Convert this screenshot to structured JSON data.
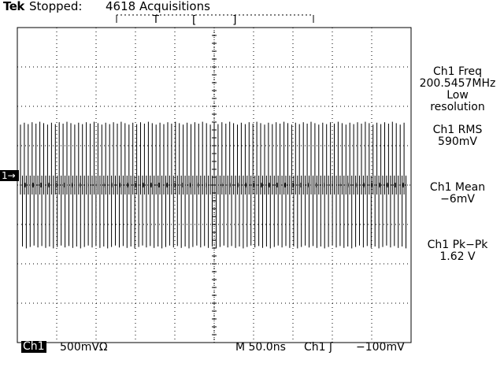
{
  "status": {
    "brand": "Tek",
    "state": "Stopped:",
    "acquisitions": "4618 Acquisitions"
  },
  "record_bar": {
    "trigger_marker": "T",
    "window_open": "[",
    "window_close": "]"
  },
  "channel_marker": "1→",
  "measurements": [
    {
      "lines": [
        "Ch1 Freq",
        "200.5457MHz",
        "Low",
        "resolution"
      ]
    },
    {
      "lines": [
        "Ch1 RMS",
        "590mV"
      ]
    },
    {
      "lines": [
        "Ch1 Mean",
        "−6mV"
      ]
    },
    {
      "lines": [
        "Ch1 Pk−Pk",
        "1.62 V"
      ]
    }
  ],
  "bottom": {
    "channel_label": "Ch1",
    "vertical_scale": "500mVΩ",
    "timebase": "M 50.0ns",
    "trigger_source": "Ch1 ʃ",
    "trigger_level": "−100mV"
  },
  "waveform": {
    "cycles_across_screen": 100,
    "upper_band_volts": [
      0.6,
      0.81
    ],
    "lower_band_volts": [
      -0.81,
      -0.6
    ],
    "volts_per_div": 0.5
  },
  "colors": {
    "trace": "#000000",
    "grid": "#000000",
    "background": "#ffffff"
  }
}
